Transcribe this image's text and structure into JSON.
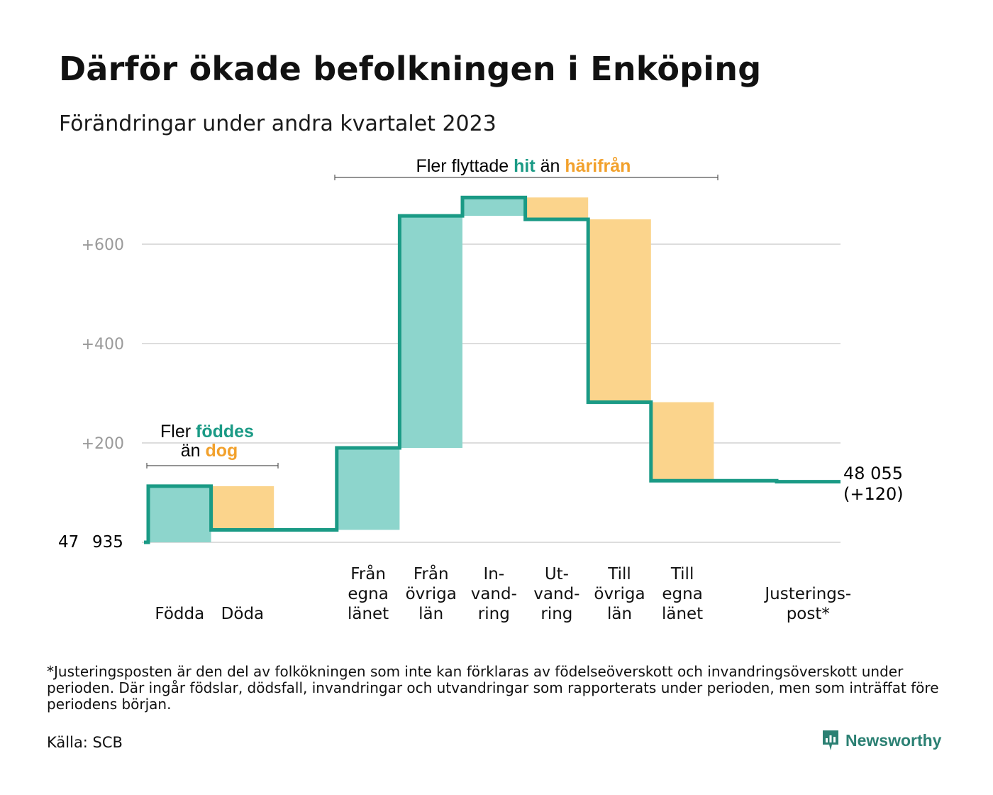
{
  "title": "Därför ökade befolkningen i Enköping",
  "subtitle": "Förändringar under andra kvartalet 2023",
  "colors": {
    "line": "#1a9a85",
    "increase": "#8dd5cc",
    "decrease": "#fbd48c",
    "grid": "#dddddd",
    "accent_orange": "#f2a12c",
    "accent_teal": "#1a9a85"
  },
  "annotations": {
    "births": {
      "line1_a": "Fler ",
      "line1_b": "föddes",
      "line2_a": "än ",
      "line2_b": "dog"
    },
    "moves": {
      "a": "Fler flyttade ",
      "b": "hit",
      "c": " än ",
      "d": "härifrån"
    }
  },
  "start_label": {
    "part1": "47",
    "part2": "935"
  },
  "end_label": {
    "line1": "48 055",
    "line2": "(+120)"
  },
  "footnote": "*Justeringsposten är den del av folkökningen som inte kan förklaras av födelseöverskott och invandringsöverskott under perioden. Där ingår födslar, dödsfall, invandringar och utvandringar som rapporterats under perioden, men som inträffat före periodens början.",
  "source": "Källa: SCB",
  "brand": "Newsworthy",
  "chart_data": {
    "type": "waterfall",
    "start": 47935,
    "end": 48055,
    "net_change": 120,
    "y_ticks": [
      {
        "value": 0,
        "label": ""
      },
      {
        "value": 200,
        "label": "+200"
      },
      {
        "value": 400,
        "label": "+400"
      },
      {
        "value": 600,
        "label": "+600"
      }
    ],
    "y_range": [
      0,
      700
    ],
    "categories": [
      {
        "label": [
          "Födda"
        ],
        "change": 113,
        "kind": "increase"
      },
      {
        "label": [
          "Döda"
        ],
        "change": -88,
        "kind": "decrease"
      },
      {
        "label": [],
        "change": 0,
        "kind": "gap"
      },
      {
        "label": [
          "Från",
          "egna",
          "länet"
        ],
        "change": 165,
        "kind": "increase"
      },
      {
        "label": [
          "Från",
          "övriga",
          "län"
        ],
        "change": 467,
        "kind": "increase"
      },
      {
        "label": [
          "In-",
          "vand-",
          "ring"
        ],
        "change": 37,
        "kind": "increase"
      },
      {
        "label": [
          "Ut-",
          "vand-",
          "ring"
        ],
        "change": -44,
        "kind": "decrease"
      },
      {
        "label": [
          "Till",
          "övriga",
          "län"
        ],
        "change": -368,
        "kind": "decrease"
      },
      {
        "label": [
          "Till",
          "egna",
          "länet"
        ],
        "change": -158,
        "kind": "decrease"
      },
      {
        "label": [],
        "change": 0,
        "kind": "gap"
      },
      {
        "label": [
          "Justerings-",
          "post*"
        ],
        "change": -2,
        "kind": "adjust"
      }
    ]
  }
}
